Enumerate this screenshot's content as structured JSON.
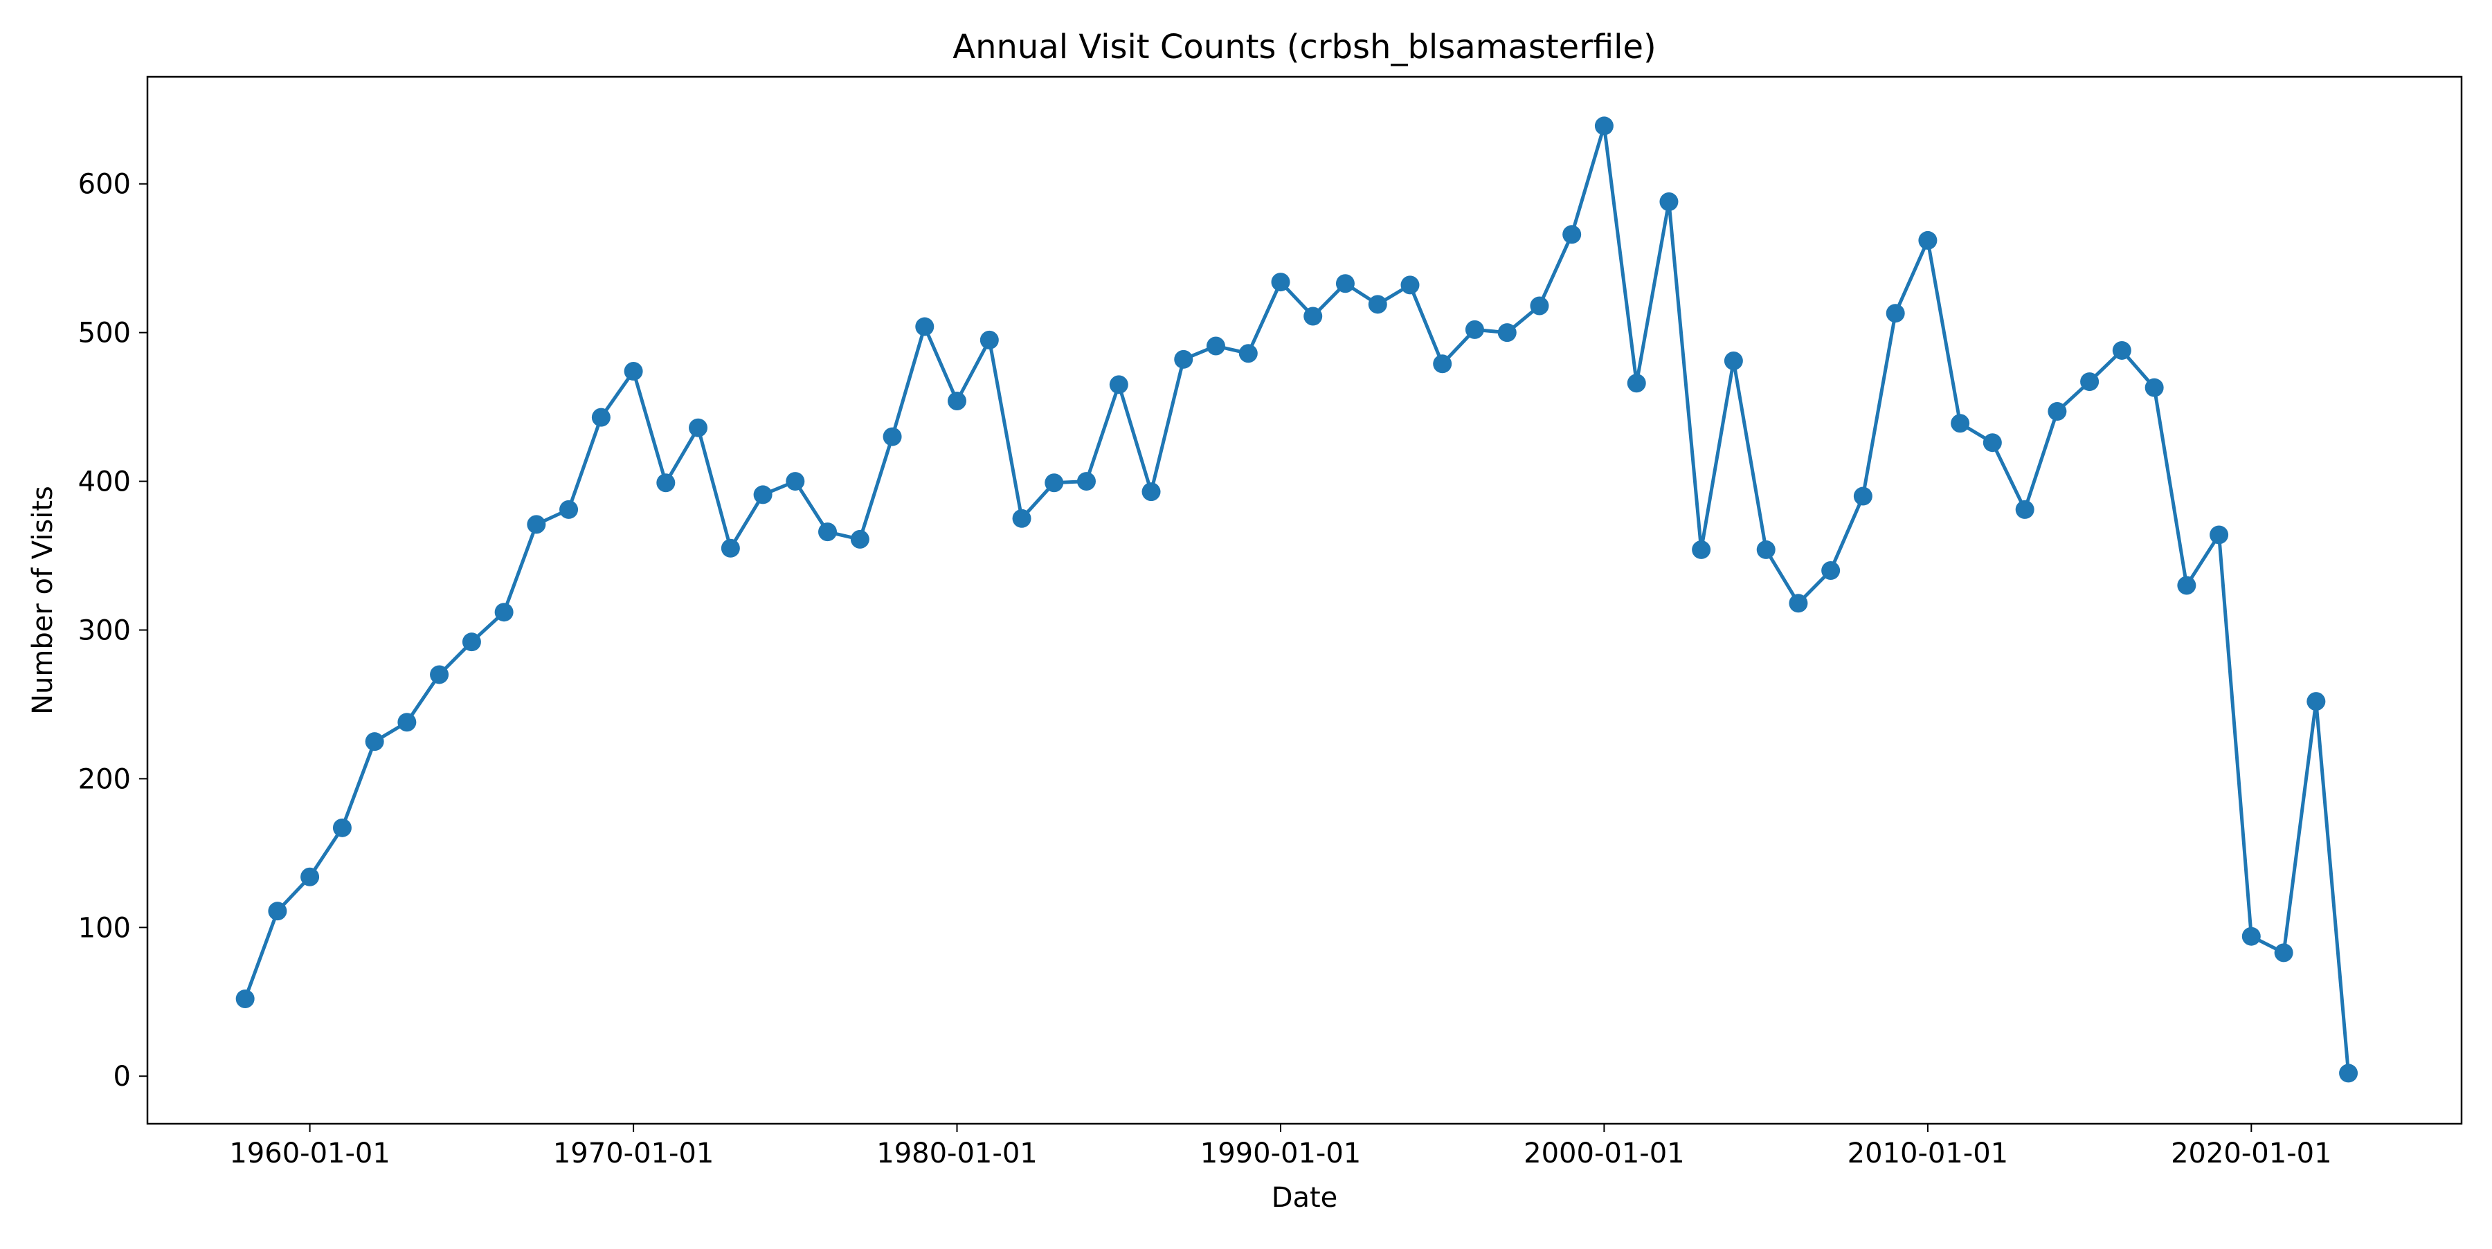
{
  "chart_data": {
    "type": "line",
    "title": "Annual Visit Counts (crbsh_blsamasterfile)",
    "xlabel": "Date",
    "ylabel": "Number of Visits",
    "x_axis_kind": "date",
    "xlim": [
      "1954-12-25",
      "2026-07-01"
    ],
    "ylim": [
      -32,
      672
    ],
    "x_ticks": [
      "1960-01-01",
      "1970-01-01",
      "1980-01-01",
      "1990-01-01",
      "2000-01-01",
      "2010-01-01",
      "2020-01-01"
    ],
    "y_ticks": [
      0,
      100,
      200,
      300,
      400,
      500,
      600
    ],
    "grid": false,
    "marker": "circle",
    "series_color": "#1f77b4",
    "series": [
      {
        "x": [
          "1958-01-01",
          "1959-01-01",
          "1960-01-01",
          "1961-01-01",
          "1962-01-01",
          "1963-01-01",
          "1964-01-01",
          "1965-01-01",
          "1966-01-01",
          "1967-01-01",
          "1968-01-01",
          "1969-01-01",
          "1970-01-01",
          "1971-01-01",
          "1972-01-01",
          "1973-01-01",
          "1974-01-01",
          "1975-01-01",
          "1976-01-01",
          "1977-01-01",
          "1978-01-01",
          "1979-01-01",
          "1980-01-01",
          "1981-01-01",
          "1982-01-01",
          "1983-01-01",
          "1984-01-01",
          "1985-01-01",
          "1986-01-01",
          "1987-01-01",
          "1988-01-01",
          "1989-01-01",
          "1990-01-01",
          "1991-01-01",
          "1992-01-01",
          "1993-01-01",
          "1994-01-01",
          "1995-01-01",
          "1996-01-01",
          "1997-01-01",
          "1998-01-01",
          "1999-01-01",
          "2000-01-01",
          "2001-01-01",
          "2002-01-01",
          "2003-01-01",
          "2004-01-01",
          "2005-01-01",
          "2006-01-01",
          "2007-01-01",
          "2008-01-01",
          "2009-01-01",
          "2010-01-01",
          "2011-01-01",
          "2012-01-01",
          "2013-01-01",
          "2014-01-01",
          "2015-01-01",
          "2016-01-01",
          "2017-01-01",
          "2018-01-01",
          "2019-01-01",
          "2020-01-01",
          "2021-01-01",
          "2022-01-01",
          "2023-01-01"
        ],
        "values": [
          52,
          111,
          134,
          167,
          225,
          238,
          270,
          292,
          312,
          371,
          381,
          443,
          474,
          399,
          436,
          355,
          391,
          400,
          366,
          361,
          430,
          504,
          454,
          495,
          375,
          399,
          400,
          465,
          393,
          482,
          491,
          486,
          534,
          511,
          533,
          519,
          532,
          479,
          502,
          500,
          518,
          566,
          639,
          466,
          588,
          354,
          481,
          354,
          318,
          340,
          390,
          513,
          562,
          439,
          426,
          381,
          447,
          467,
          488,
          463,
          330,
          364,
          94,
          83,
          252,
          2
        ]
      }
    ]
  }
}
